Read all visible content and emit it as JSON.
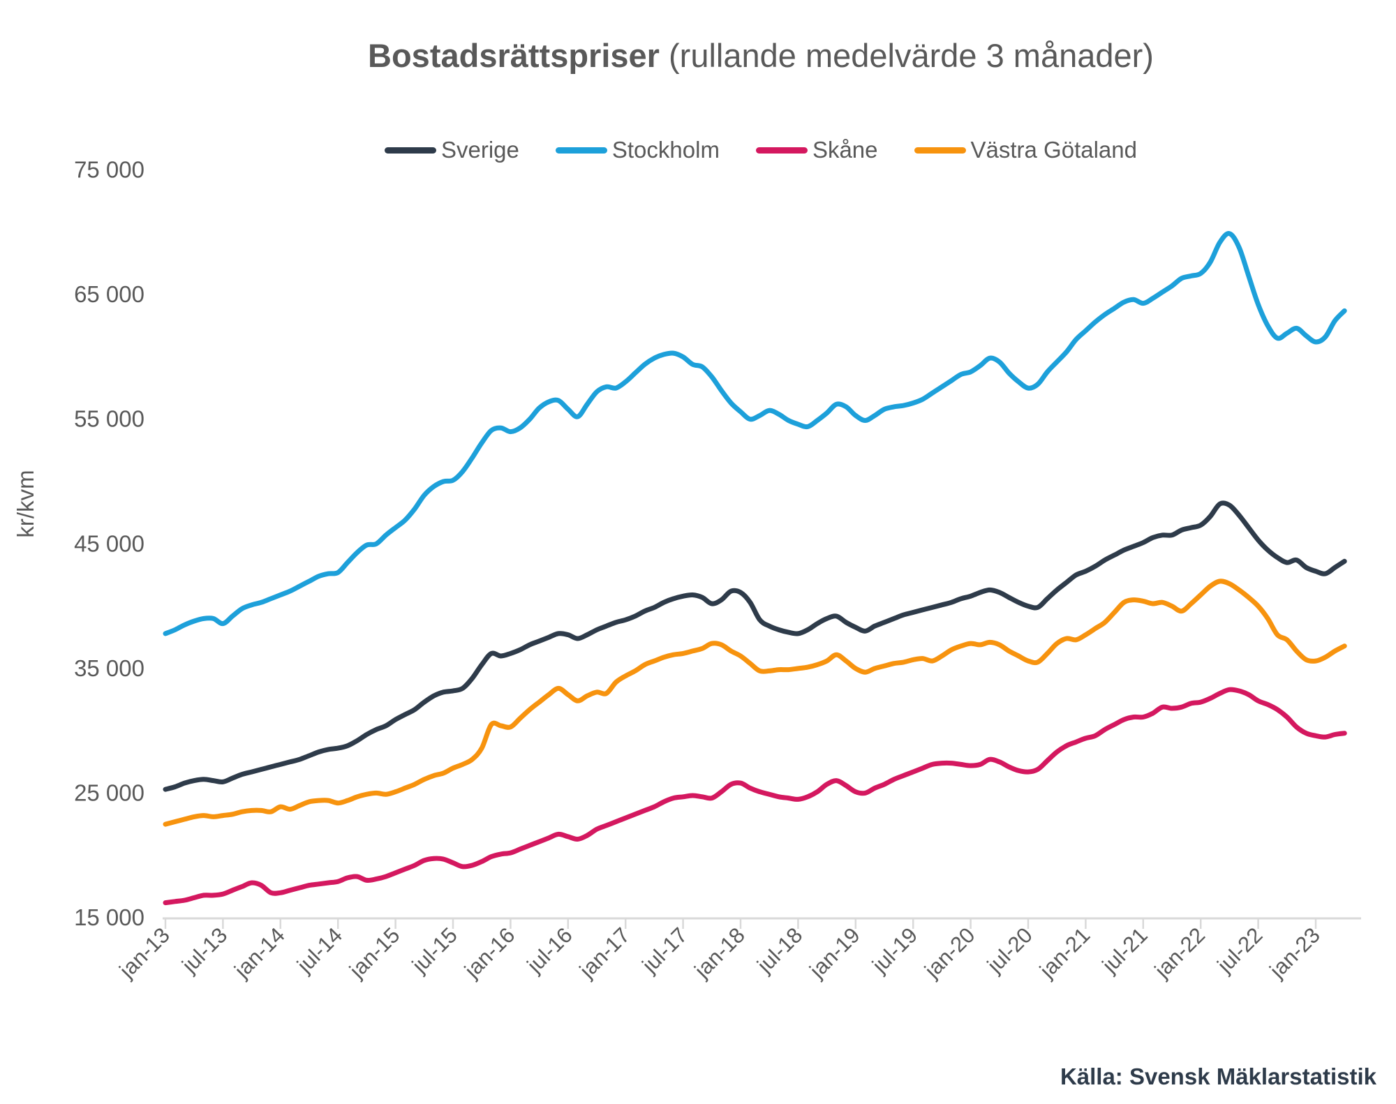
{
  "title": {
    "bold": "Bostadsrättspriser",
    "regular": " (rullande medelvärde 3 månader)"
  },
  "source_note": "Källa: Svensk Mäklarstatistik",
  "y_axis": {
    "unit_label": "kr/kvm",
    "tick_labels": [
      "75 000",
      "65 000",
      "55 000",
      "45 000",
      "35 000",
      "25 000",
      "15 000"
    ],
    "tick_values": [
      75000,
      65000,
      55000,
      45000,
      35000,
      25000,
      15000
    ]
  },
  "x_axis": {
    "tick_labels": [
      "jan-13",
      "jul-13",
      "jan-14",
      "jul-14",
      "jan-15",
      "jul-15",
      "jan-16",
      "jul-16",
      "jan-17",
      "jul-17",
      "jan-18",
      "jul-18",
      "jan-19",
      "jul-19",
      "jan-20",
      "jul-20",
      "jan-21",
      "jul-21",
      "jan-22",
      "jul-22",
      "jan-23"
    ]
  },
  "styles": {
    "text_color": "#595959",
    "axis_color": "#d9d9d9",
    "source_color": "#2e3b4a",
    "background": "#ffffff"
  },
  "chart_data": {
    "type": "line",
    "title": "Bostadsrättspriser (rullande medelvärde 3 månader)",
    "ylabel": "kr/kvm",
    "ylim": [
      15000,
      75000
    ],
    "grid": false,
    "legend_position": "top",
    "x_start": "jan-13",
    "x_end": "apr-23",
    "frequency": "monthly",
    "series": [
      {
        "name": "Sverige",
        "color": "#2e3b4a",
        "values": [
          25300,
          25500,
          25800,
          26000,
          26100,
          26000,
          25900,
          26200,
          26500,
          26700,
          26900,
          27100,
          27300,
          27500,
          27700,
          28000,
          28300,
          28500,
          28600,
          28800,
          29200,
          29700,
          30100,
          30400,
          30900,
          31300,
          31700,
          32300,
          32800,
          33100,
          33200,
          33400,
          34200,
          35300,
          36200,
          36000,
          36200,
          36500,
          36900,
          37200,
          37500,
          37800,
          37700,
          37400,
          37700,
          38100,
          38400,
          38700,
          38900,
          39200,
          39600,
          39900,
          40300,
          40600,
          40800,
          40900,
          40700,
          40200,
          40500,
          41200,
          41100,
          40300,
          38900,
          38400,
          38100,
          37900,
          37800,
          38100,
          38600,
          39000,
          39200,
          38700,
          38300,
          38000,
          38400,
          38700,
          39000,
          39300,
          39500,
          39700,
          39900,
          40100,
          40300,
          40600,
          40800,
          41100,
          41300,
          41100,
          40700,
          40300,
          40000,
          39900,
          40600,
          41300,
          41900,
          42500,
          42800,
          43200,
          43700,
          44100,
          44500,
          44800,
          45100,
          45500,
          45700,
          45700,
          46100,
          46300,
          46500,
          47200,
          48200,
          48100,
          47300,
          46300,
          45300,
          44500,
          43900,
          43500,
          43700,
          43100,
          42800,
          42600,
          43100,
          43600
        ]
      },
      {
        "name": "Stockholm",
        "color": "#1da0da",
        "values": [
          37800,
          38100,
          38500,
          38800,
          39000,
          39000,
          38600,
          39200,
          39800,
          40100,
          40300,
          40600,
          40900,
          41200,
          41600,
          42000,
          42400,
          42600,
          42700,
          43500,
          44300,
          44900,
          45000,
          45700,
          46300,
          46900,
          47800,
          48900,
          49600,
          50000,
          50100,
          50800,
          51900,
          53100,
          54100,
          54300,
          54000,
          54300,
          55000,
          55900,
          56400,
          56500,
          55800,
          55200,
          56200,
          57200,
          57600,
          57500,
          58000,
          58700,
          59400,
          59900,
          60200,
          60300,
          60000,
          59400,
          59200,
          58400,
          57300,
          56300,
          55600,
          55000,
          55300,
          55700,
          55400,
          54900,
          54600,
          54400,
          54900,
          55500,
          56200,
          56000,
          55300,
          54900,
          55300,
          55800,
          56000,
          56100,
          56300,
          56600,
          57100,
          57600,
          58100,
          58600,
          58800,
          59300,
          59900,
          59600,
          58700,
          58000,
          57500,
          57800,
          58800,
          59600,
          60400,
          61400,
          62100,
          62800,
          63400,
          63900,
          64400,
          64600,
          64300,
          64700,
          65200,
          65700,
          66300,
          66500,
          66700,
          67600,
          69200,
          69900,
          68800,
          66500,
          64200,
          62500,
          61500,
          61900,
          62300,
          61700,
          61200,
          61600,
          62900,
          63700
        ]
      },
      {
        "name": "Skåne",
        "color": "#d4185f",
        "values": [
          16200,
          16300,
          16400,
          16600,
          16800,
          16800,
          16900,
          17200,
          17500,
          17800,
          17600,
          17000,
          17000,
          17200,
          17400,
          17600,
          17700,
          17800,
          17900,
          18200,
          18300,
          18000,
          18100,
          18300,
          18600,
          18900,
          19200,
          19600,
          19750,
          19700,
          19400,
          19100,
          19200,
          19500,
          19900,
          20100,
          20200,
          20500,
          20800,
          21100,
          21400,
          21700,
          21500,
          21300,
          21600,
          22100,
          22400,
          22700,
          23000,
          23300,
          23600,
          23900,
          24300,
          24600,
          24700,
          24800,
          24700,
          24600,
          25100,
          25700,
          25800,
          25400,
          25100,
          24900,
          24700,
          24600,
          24500,
          24700,
          25100,
          25700,
          26000,
          25600,
          25100,
          25000,
          25400,
          25700,
          26100,
          26400,
          26700,
          27000,
          27300,
          27400,
          27400,
          27300,
          27200,
          27300,
          27700,
          27500,
          27100,
          26800,
          26700,
          26900,
          27600,
          28300,
          28800,
          29100,
          29400,
          29600,
          30100,
          30500,
          30900,
          31100,
          31100,
          31400,
          31900,
          31800,
          31900,
          32200,
          32300,
          32600,
          33000,
          33300,
          33200,
          32900,
          32400,
          32100,
          31700,
          31100,
          30300,
          29800,
          29600,
          29500,
          29700,
          29800
        ]
      },
      {
        "name": "Västra Götaland",
        "color": "#f7930e",
        "values": [
          22500,
          22700,
          22900,
          23100,
          23200,
          23100,
          23200,
          23300,
          23500,
          23600,
          23600,
          23500,
          23900,
          23700,
          24000,
          24300,
          24400,
          24400,
          24200,
          24400,
          24700,
          24900,
          25000,
          24900,
          25100,
          25400,
          25700,
          26100,
          26400,
          26600,
          27000,
          27300,
          27700,
          28600,
          30500,
          30400,
          30300,
          31000,
          31700,
          32300,
          32900,
          33400,
          32900,
          32400,
          32800,
          33100,
          33000,
          33900,
          34400,
          34800,
          35300,
          35600,
          35900,
          36100,
          36200,
          36400,
          36600,
          37000,
          36900,
          36400,
          36000,
          35400,
          34800,
          34800,
          34900,
          34900,
          35000,
          35100,
          35300,
          35600,
          36100,
          35600,
          35000,
          34700,
          35000,
          35200,
          35400,
          35500,
          35700,
          35800,
          35600,
          36000,
          36500,
          36800,
          37000,
          36900,
          37100,
          36900,
          36400,
          36000,
          35600,
          35500,
          36200,
          37000,
          37400,
          37300,
          37700,
          38200,
          38700,
          39500,
          40300,
          40500,
          40400,
          40200,
          40300,
          40000,
          39600,
          40200,
          40900,
          41600,
          42000,
          41800,
          41300,
          40700,
          40000,
          39000,
          37700,
          37300,
          36400,
          35700,
          35600,
          35900,
          36400,
          36800
        ]
      }
    ]
  }
}
